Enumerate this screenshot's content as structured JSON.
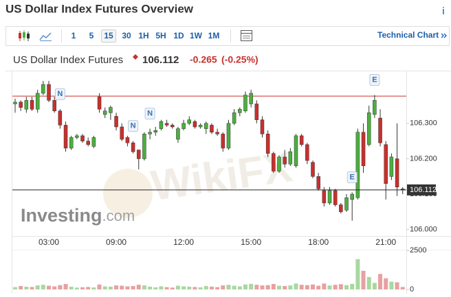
{
  "header": {
    "title": "US Dollar Index Futures Overview",
    "info": "i"
  },
  "toolbar": {
    "intervals": [
      "1",
      "5",
      "15",
      "30",
      "1H",
      "5H",
      "1D",
      "1W",
      "1M"
    ],
    "selected": "15",
    "link": "Technical Chart"
  },
  "quote": {
    "name": "US Dollar Index Futures",
    "change": -0.265,
    "change_percent": "(-0.25%)"
  },
  "branding": {
    "logo": "Investing",
    "logo_suffix": ".com",
    "watermark": "WikiFX"
  },
  "chart_data": {
    "type": "candlestick",
    "categories": [
      null,
      null,
      null,
      null,
      null,
      null,
      "03:00",
      null,
      null,
      null,
      null,
      null,
      null,
      null,
      null,
      null,
      null,
      null,
      "09:00",
      null,
      null,
      null,
      null,
      null,
      null,
      null,
      null,
      null,
      null,
      null,
      "12:00",
      null,
      null,
      null,
      null,
      null,
      null,
      null,
      null,
      null,
      null,
      null,
      "15:00",
      null,
      null,
      null,
      null,
      null,
      null,
      null,
      null,
      null,
      null,
      null,
      "18:00",
      null,
      null,
      null,
      null,
      null,
      null,
      null,
      null,
      null,
      null,
      null,
      "21:00",
      null,
      null,
      null
    ],
    "open": [
      106.355,
      106.36,
      106.34,
      106.365,
      106.34,
      106.385,
      106.41,
      106.365,
      106.335,
      106.295,
      106.23,
      106.26,
      106.265,
      106.25,
      106.235,
      106.375,
      106.325,
      106.33,
      106.32,
      106.29,
      106.26,
      106.245,
      106.225,
      106.2,
      106.27,
      106.275,
      106.285,
      106.3,
      106.295,
      106.255,
      106.285,
      106.3,
      106.305,
      106.29,
      106.285,
      106.295,
      106.275,
      106.27,
      106.23,
      106.3,
      106.33,
      106.335,
      106.355,
      106.355,
      106.31,
      106.27,
      106.215,
      106.165,
      106.205,
      106.185,
      106.18,
      106.265,
      106.24,
      106.19,
      106.15,
      106.11,
      106.075,
      106.11,
      106.07,
      106.055,
      106.085,
      106.09,
      106.275,
      106.24,
      106.325,
      106.315,
      106.24,
      106.15,
      106.2,
      106.115
    ],
    "high": [
      106.37,
      106.365,
      106.375,
      106.375,
      106.395,
      106.42,
      106.42,
      106.375,
      106.34,
      106.305,
      106.265,
      106.27,
      106.27,
      106.26,
      106.265,
      106.385,
      106.345,
      106.35,
      106.33,
      106.3,
      106.265,
      106.25,
      106.225,
      106.275,
      106.285,
      106.29,
      106.31,
      106.31,
      106.3,
      106.29,
      106.31,
      106.32,
      106.31,
      106.3,
      106.305,
      106.3,
      106.285,
      106.275,
      106.31,
      106.34,
      106.345,
      106.39,
      106.395,
      106.365,
      106.32,
      106.28,
      106.22,
      106.21,
      106.225,
      106.23,
      106.27,
      106.27,
      106.245,
      106.195,
      106.16,
      106.12,
      106.12,
      106.115,
      106.075,
      106.1,
      106.105,
      106.285,
      106.3,
      106.35,
      106.38,
      106.34,
      106.25,
      106.215,
      106.3,
      106.12
    ],
    "low": [
      106.33,
      106.335,
      106.33,
      106.335,
      106.33,
      106.38,
      106.36,
      106.33,
      106.285,
      106.22,
      106.225,
      106.255,
      106.245,
      106.235,
      106.23,
      106.33,
      106.315,
      106.31,
      106.28,
      106.25,
      106.235,
      106.215,
      106.17,
      106.195,
      106.255,
      106.265,
      106.28,
      106.29,
      106.285,
      106.245,
      106.28,
      106.295,
      106.285,
      106.285,
      106.27,
      106.27,
      106.265,
      106.22,
      106.225,
      106.295,
      106.32,
      106.33,
      106.345,
      106.3,
      106.26,
      106.205,
      106.16,
      106.16,
      106.175,
      106.18,
      106.175,
      106.235,
      106.185,
      106.145,
      106.11,
      106.065,
      106.07,
      106.065,
      106.045,
      106.05,
      106.025,
      106.085,
      106.16,
      106.235,
      106.315,
      106.235,
      106.085,
      106.14,
      106.095,
      106.1
    ],
    "close": [
      106.36,
      106.345,
      106.365,
      106.34,
      106.385,
      106.41,
      106.365,
      106.335,
      106.295,
      106.23,
      106.26,
      106.265,
      106.25,
      106.24,
      106.26,
      106.34,
      106.335,
      106.345,
      106.29,
      106.255,
      106.245,
      106.22,
      106.2,
      106.27,
      106.275,
      106.28,
      106.305,
      106.295,
      106.29,
      106.285,
      106.3,
      106.31,
      106.29,
      106.295,
      106.3,
      106.275,
      106.27,
      106.23,
      106.3,
      106.33,
      106.34,
      106.38,
      106.385,
      106.31,
      106.27,
      106.215,
      106.165,
      106.205,
      106.185,
      106.22,
      106.265,
      106.24,
      106.195,
      106.15,
      106.115,
      106.075,
      106.11,
      106.07,
      106.05,
      106.09,
      106.1,
      106.275,
      106.18,
      106.33,
      106.365,
      106.245,
      106.13,
      106.205,
      106.12,
      106.112
    ],
    "volume": [
      150,
      220,
      180,
      160,
      260,
      300,
      240,
      200,
      280,
      350,
      180,
      120,
      140,
      160,
      130,
      320,
      200,
      180,
      260,
      240,
      200,
      220,
      300,
      260,
      180,
      140,
      200,
      150,
      120,
      240,
      200,
      180,
      160,
      140,
      220,
      180,
      150,
      260,
      300,
      240,
      200,
      320,
      360,
      300,
      260,
      280,
      350,
      240,
      220,
      260,
      380,
      300,
      280,
      320,
      240,
      380,
      260,
      300,
      340,
      280,
      360,
      1950,
      1200,
      800,
      420,
      1000,
      720,
      500,
      460,
      160
    ],
    "ylim": [
      105.98,
      106.445
    ],
    "yticks": [
      {
        "value": 106.0,
        "label": "106.000"
      },
      {
        "value": 106.1,
        "label": "106.100"
      },
      {
        "value": 106.2,
        "label": "106.200"
      },
      {
        "value": 106.3,
        "label": "106.300"
      }
    ],
    "volume_ylim": [
      0,
      3000
    ],
    "volume_yticks": [
      0,
      2500
    ],
    "last_price": 106.112,
    "high_line": 106.377,
    "up_color": "#4caf3f",
    "down_color": "#c9302c",
    "events": [
      {
        "label": "N",
        "index": 8
      },
      {
        "label": "N",
        "index": 21
      },
      {
        "label": "N",
        "index": 24
      },
      {
        "label": "E",
        "index": 60
      },
      {
        "label": "E",
        "index": 64
      }
    ]
  }
}
